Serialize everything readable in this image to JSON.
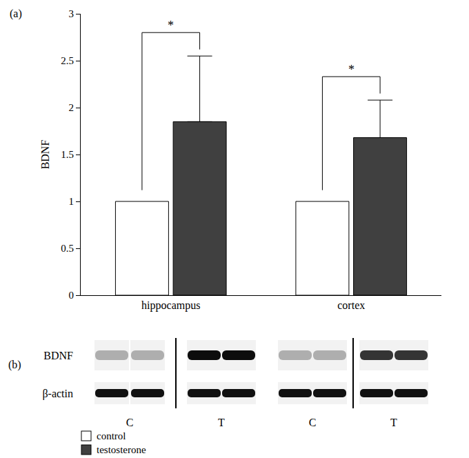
{
  "chart_data": {
    "type": "bar",
    "panel_label": "(a)",
    "y_label": "BDNF",
    "categories": [
      "hippocampus",
      "cortex"
    ],
    "series": [
      {
        "name": "control",
        "color": "#ffffff",
        "values": [
          1,
          1
        ]
      },
      {
        "name": "testosterone",
        "color": "#404040",
        "values": [
          1.85,
          1.68
        ],
        "error_plus": [
          0.7,
          0.4
        ]
      }
    ],
    "ylim": [
      0,
      3
    ],
    "yticks": [
      0,
      0.5,
      1,
      1.5,
      2,
      2.5,
      3
    ],
    "grid": false,
    "annotations": [
      {
        "text": "*",
        "category": "hippocampus"
      },
      {
        "text": "*",
        "category": "cortex"
      }
    ]
  },
  "blot": {
    "panel_label": "(b)",
    "rows": [
      "BDNF",
      "β-actin"
    ],
    "lanes": [
      "C",
      "T",
      "C",
      "T"
    ]
  }
}
